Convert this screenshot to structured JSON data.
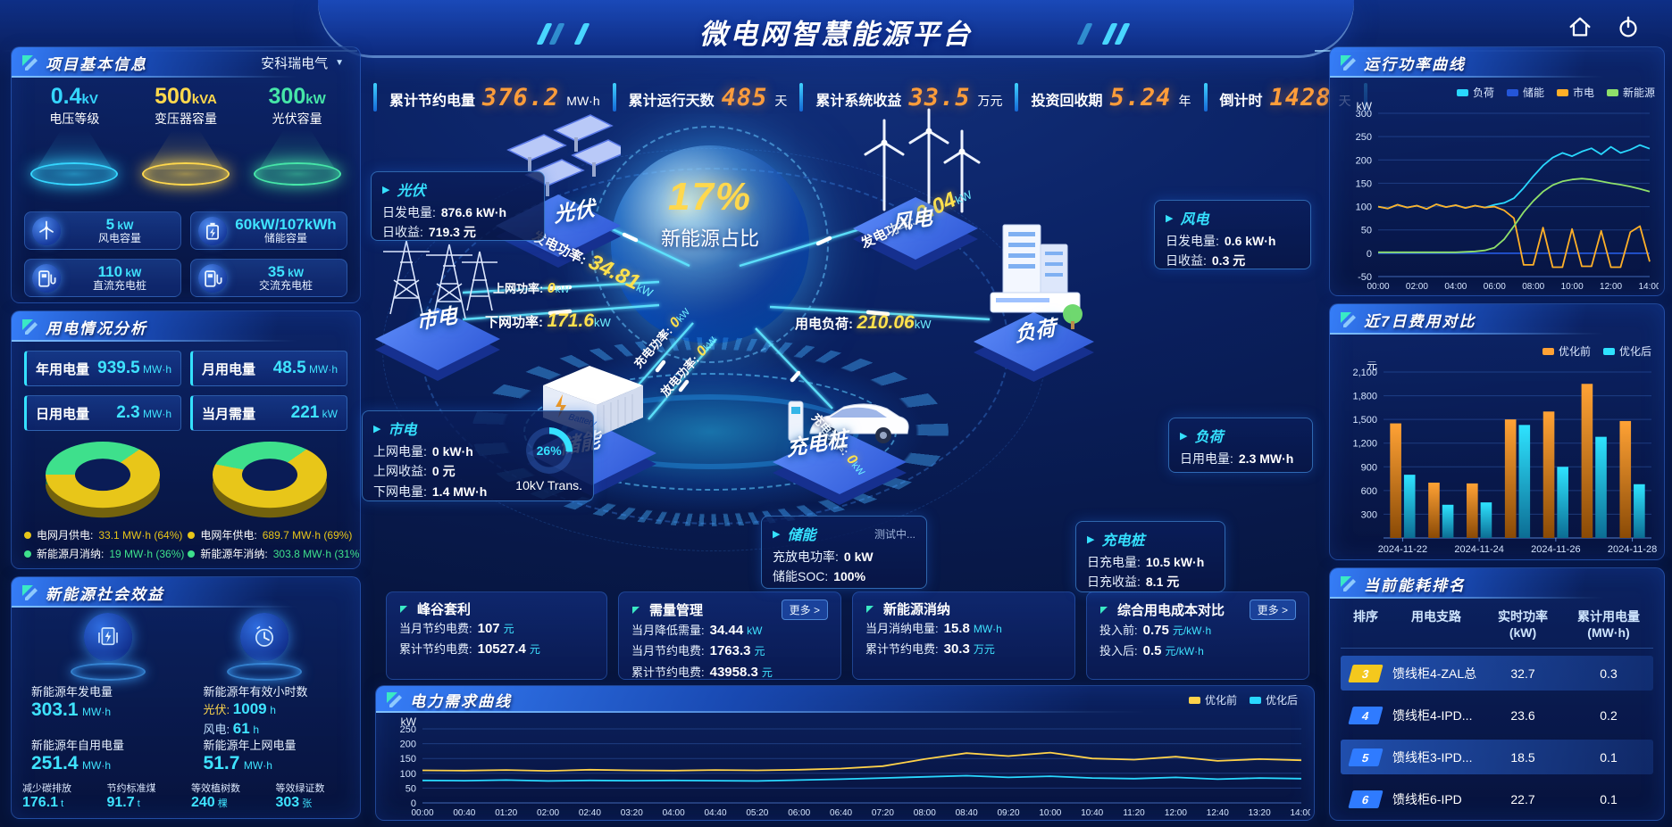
{
  "header": {
    "title": "微电网智慧能源平台"
  },
  "topbar": {
    "stats": [
      {
        "label": "累计节约电量",
        "value": "376.2",
        "unit": "MW·h"
      },
      {
        "label": "累计运行天数",
        "value": "485",
        "unit": "天"
      },
      {
        "label": "累计系统收益",
        "value": "33.5",
        "unit": "万元"
      },
      {
        "label": "投资回收期",
        "value": "5.24",
        "unit": "年"
      },
      {
        "label": "倒计时",
        "value": "1428",
        "unit": "天"
      }
    ]
  },
  "project_panel": {
    "title": "项目基本信息",
    "company": "安科瑞电气",
    "pedestals": [
      {
        "value": "0.4",
        "unit": "kV",
        "label": "电压等级",
        "color": "#35d6ff"
      },
      {
        "value": "500",
        "unit": "kVA",
        "label": "变压器容量",
        "color": "#ffd84d"
      },
      {
        "value": "300",
        "unit": "kW",
        "label": "光伏容量",
        "color": "#46e6a8"
      }
    ],
    "cards": [
      {
        "value": "5",
        "unit": "kW",
        "label": "风电容量",
        "icon": "wind-turbine-icon"
      },
      {
        "value": "60kW/107kWh",
        "unit": "",
        "label": "储能容量",
        "icon": "battery-icon"
      },
      {
        "value": "110",
        "unit": "kW",
        "label": "直流充电桩",
        "icon": "dc-charger-icon"
      },
      {
        "value": "35",
        "unit": "kW",
        "label": "交流充电桩",
        "icon": "ac-charger-icon"
      }
    ]
  },
  "usage_panel": {
    "title": "用电情况分析",
    "chips": [
      {
        "label": "年用电量",
        "value": "939.5",
        "unit": "MW·h"
      },
      {
        "label": "月用电量",
        "value": "48.5",
        "unit": "MW·h"
      },
      {
        "label": "日用电量",
        "value": "2.3",
        "unit": "MW·h"
      },
      {
        "label": "当月需量",
        "value": "221",
        "unit": "kW"
      }
    ]
  },
  "benefit_panel": {
    "title": "新能源社会效益",
    "gen": {
      "label": "新能源年发电量",
      "value": "303.1",
      "unit": "MW·h"
    },
    "hours": {
      "label": "新能源年有效小时数",
      "pv_label": "光伏:",
      "pv_value": "1009",
      "pv_unit": "h",
      "wind_label": "风电:",
      "wind_value": "61",
      "wind_unit": "h"
    },
    "self_use": {
      "label": "新能源年自用电量",
      "value": "251.4",
      "unit": "MW·h"
    },
    "to_grid": {
      "label": "新能源年上网电量",
      "value": "51.7",
      "unit": "MW·h"
    },
    "bottom": [
      {
        "label": "减少碳排放",
        "value": "176.1",
        "unit": "t"
      },
      {
        "label": "节约标准煤",
        "value": "91.7",
        "unit": "t"
      },
      {
        "label": "等效植树数",
        "value": "240",
        "unit": "棵"
      },
      {
        "label": "等效绿证数",
        "value": "303",
        "unit": "张"
      }
    ]
  },
  "center": {
    "gauge": {
      "value": "17%",
      "label": "新能源占比"
    },
    "nodes": {
      "pv": "光伏",
      "wind": "风电",
      "grid": "市电",
      "load": "负荷",
      "storage": "储能",
      "charger": "充电桩"
    },
    "flows": [
      {
        "label": "发电功率:",
        "value": "34.81",
        "unit": "kW"
      },
      {
        "label": "发电功率:",
        "value": "0.04",
        "unit": "kW"
      },
      {
        "label": "上网功率:",
        "value": "0",
        "unit": "kW"
      },
      {
        "label": "下网功率:",
        "value": "171.6",
        "unit": "kW"
      },
      {
        "label": "用电负荷:",
        "value": "210.06",
        "unit": "kW"
      },
      {
        "label": "充电功率:",
        "value": "0",
        "unit": "kW"
      },
      {
        "label": "放电功率:",
        "value": "0",
        "unit": "kW"
      },
      {
        "label": "充电功率:",
        "value": "0",
        "unit": "kW"
      }
    ],
    "info_cards": {
      "pv": {
        "title": "光伏",
        "rows": [
          [
            "日发电量:",
            "876.6 kW·h"
          ],
          [
            "日收益:",
            "719.3 元"
          ]
        ]
      },
      "wind": {
        "title": "风电",
        "rows": [
          [
            "日发电量:",
            "0.6 kW·h"
          ],
          [
            "日收益:",
            "0.3 元"
          ]
        ]
      },
      "grid": {
        "title": "市电",
        "rows": [
          [
            "上网电量:",
            "0 kW·h"
          ],
          [
            "上网收益:",
            "0 元"
          ],
          [
            "下网电量:",
            "1.4 MW·h"
          ]
        ],
        "gauge_value": "26%",
        "gauge_percent": 26,
        "gauge_label": "10kV Trans."
      },
      "storage": {
        "title": "储能",
        "status": "测试中...",
        "rows": [
          [
            "充放电功率:",
            "0 kW"
          ],
          [
            "储能SOC:",
            "100%"
          ]
        ]
      },
      "charger": {
        "title": "充电桩",
        "rows": [
          [
            "日充电量:",
            "10.5 kW·h"
          ],
          [
            "日充收益:",
            "8.1 元"
          ]
        ]
      },
      "load": {
        "title": "负荷",
        "rows": [
          [
            "日用电量:",
            "2.3 MW·h"
          ]
        ]
      }
    }
  },
  "bottom_cards": [
    {
      "title": "峰谷套利",
      "more": null,
      "rows": [
        [
          "当月节约电费:",
          "107",
          "元"
        ],
        [
          "累计节约电费:",
          "10527.4",
          "元"
        ]
      ]
    },
    {
      "title": "需量管理",
      "more": "更多 >",
      "rows": [
        [
          "当月降低需量:",
          "34.44",
          "kW"
        ],
        [
          "当月节约电费:",
          "1763.3",
          "元"
        ],
        [
          "累计节约电费:",
          "43958.3",
          "元"
        ]
      ]
    },
    {
      "title": "新能源消纳",
      "more": null,
      "rows": [
        [
          "当月消纳电量:",
          "15.8",
          "MW·h"
        ],
        [
          "累计节约电费:",
          "30.3",
          "万元"
        ]
      ]
    },
    {
      "title": "综合用电成本对比",
      "more": "更多 >",
      "rows": [
        [
          "投入前:",
          "0.75",
          "元/kW·h"
        ],
        [
          "投入后:",
          "0.5",
          "元/kW·h"
        ]
      ]
    }
  ],
  "run_panel": {
    "title": "运行功率曲线"
  },
  "cost_panel": {
    "title": "近7日费用对比"
  },
  "demand_panel": {
    "title": "电力需求曲线"
  },
  "ranking_panel": {
    "title": "当前能耗排名",
    "columns": [
      "排序",
      "用电支路",
      "实时功率\n(kW)",
      "累计用电量\n(MW·h)"
    ],
    "rows": [
      {
        "rank": "3",
        "branch": "馈线柜4-ZAL总",
        "power": "32.7",
        "energy": "0.3",
        "highlight": true,
        "badge": "#f4c81d"
      },
      {
        "rank": "4",
        "branch": "馈线柜4-IPD...",
        "power": "23.6",
        "energy": "0.2",
        "highlight": false,
        "badge": "#2f7bff"
      },
      {
        "rank": "5",
        "branch": "馈线柜3-IPD...",
        "power": "18.5",
        "energy": "0.1",
        "highlight": true,
        "badge": "#2f7bff"
      },
      {
        "rank": "6",
        "branch": "馈线柜6-IPD",
        "power": "22.7",
        "energy": "0.1",
        "highlight": false,
        "badge": "#2f7bff"
      }
    ]
  },
  "chart_data": [
    {
      "id": "run_power",
      "type": "line",
      "title": "运行功率曲线",
      "ylabel": "kW",
      "ylim": [
        -50,
        300
      ],
      "yticks": [
        -50,
        0,
        50,
        100,
        150,
        200,
        250,
        300
      ],
      "x": [
        "00:00",
        "00:30",
        "01:00",
        "01:30",
        "02:00",
        "02:30",
        "03:00",
        "03:30",
        "04:00",
        "04:30",
        "05:00",
        "05:30",
        "06:00",
        "06:30",
        "07:00",
        "07:30",
        "08:00",
        "08:30",
        "09:00",
        "09:30",
        "10:00",
        "10:30",
        "11:00",
        "11:30",
        "12:00",
        "12:30",
        "13:00",
        "13:30",
        "14:00"
      ],
      "xtick_labels": [
        "00:00",
        "02:00",
        "04:00",
        "06:00",
        "08:00",
        "10:00",
        "12:00",
        "14:00"
      ],
      "legend_position": "top-right",
      "grid": true,
      "series": [
        {
          "name": "负荷",
          "color": "#29d8ff",
          "values": [
            100,
            96,
            104,
            98,
            102,
            95,
            105,
            99,
            103,
            97,
            102,
            98,
            104,
            108,
            118,
            140,
            165,
            188,
            205,
            215,
            208,
            218,
            225,
            212,
            228,
            215,
            222,
            232,
            224
          ]
        },
        {
          "name": "储能",
          "color": "#2456d8",
          "values": [
            0,
            0,
            0,
            0,
            0,
            0,
            0,
            0,
            0,
            0,
            0,
            0,
            0,
            0,
            0,
            0,
            0,
            0,
            0,
            0,
            0,
            0,
            0,
            0,
            0,
            0,
            0,
            0,
            0
          ]
        },
        {
          "name": "市电",
          "color": "#ffb028",
          "values": [
            100,
            96,
            104,
            98,
            102,
            95,
            105,
            99,
            103,
            97,
            102,
            98,
            100,
            92,
            75,
            -25,
            -25,
            55,
            -30,
            -30,
            52,
            -28,
            -28,
            48,
            -30,
            -30,
            45,
            58,
            -18
          ]
        },
        {
          "name": "新能源",
          "color": "#8fe06a",
          "values": [
            2,
            2,
            2,
            2,
            2,
            2,
            2,
            2,
            2,
            3,
            4,
            6,
            12,
            30,
            58,
            88,
            112,
            132,
            146,
            154,
            158,
            160,
            158,
            154,
            150,
            147,
            143,
            138,
            132
          ]
        }
      ]
    },
    {
      "id": "cost7",
      "type": "bar",
      "title": "近7日费用对比",
      "ylabel": "元",
      "ylim": [
        0,
        2100
      ],
      "yticks": [
        300,
        600,
        900,
        1200,
        1500,
        1800,
        2100
      ],
      "categories": [
        "2024-11-22",
        "2024-11-23",
        "2024-11-24",
        "2024-11-25",
        "2024-11-26",
        "2024-11-27",
        "2024-11-28"
      ],
      "xtick_idx": [
        0,
        2,
        4,
        6
      ],
      "legend_position": "top-right",
      "grid": true,
      "series": [
        {
          "name": "优化前",
          "color": "#ffa235",
          "color2": "#8a4a06",
          "values": [
            1450,
            700,
            690,
            1500,
            1600,
            1950,
            1480
          ]
        },
        {
          "name": "优化后",
          "color": "#2ee3ff",
          "color2": "#0c6d94",
          "values": [
            800,
            420,
            450,
            1430,
            900,
            1280,
            680
          ]
        }
      ]
    },
    {
      "id": "demand",
      "type": "line",
      "title": "电力需求曲线",
      "ylabel": "kW",
      "ylim": [
        0,
        250
      ],
      "yticks": [
        0,
        50,
        100,
        150,
        200,
        250
      ],
      "x": [
        "00:00",
        "00:40",
        "01:20",
        "02:00",
        "02:40",
        "03:20",
        "04:00",
        "04:40",
        "05:20",
        "06:00",
        "06:40",
        "07:20",
        "08:00",
        "08:40",
        "09:20",
        "10:00",
        "10:40",
        "11:20",
        "12:00",
        "12:40",
        "13:20",
        "14:00"
      ],
      "xtick_labels": [
        "00:00",
        "00:40",
        "01:20",
        "02:00",
        "02:40",
        "03:20",
        "04:00",
        "04:40",
        "05:20",
        "06:00",
        "06:40",
        "07:20",
        "08:00",
        "08:40",
        "09:20",
        "10:00",
        "10:40",
        "11:20",
        "12:00",
        "12:40",
        "13:20",
        "14:00"
      ],
      "legend_position": "top-right",
      "grid": true,
      "series": [
        {
          "name": "优化前",
          "color": "#ffd24a",
          "values": [
            110,
            109,
            111,
            108,
            112,
            110,
            109,
            111,
            110,
            112,
            116,
            124,
            148,
            168,
            158,
            170,
            150,
            146,
            156,
            142,
            148,
            144
          ]
        },
        {
          "name": "优化后",
          "color": "#29d8ff",
          "values": [
            76,
            75,
            77,
            74,
            76,
            75,
            76,
            75,
            74,
            77,
            80,
            84,
            88,
            92,
            86,
            90,
            84,
            82,
            86,
            80,
            84,
            82
          ]
        }
      ]
    },
    {
      "id": "donut_month",
      "type": "pie",
      "labels": [
        "电网月供电",
        "新能源月消纳"
      ],
      "values": [
        64,
        36
      ],
      "value_texts": [
        "33.1 MW·h (64%)",
        "19 MW·h (36%)"
      ],
      "colors": [
        "#e8c619",
        "#3ee08c"
      ]
    },
    {
      "id": "donut_year",
      "type": "pie",
      "labels": [
        "电网年供电",
        "新能源年消纳"
      ],
      "values": [
        69,
        31
      ],
      "value_texts": [
        "689.7 MW·h (69%)",
        "303.8 MW·h (31%)"
      ],
      "colors": [
        "#e8c619",
        "#3ee08c"
      ]
    }
  ]
}
